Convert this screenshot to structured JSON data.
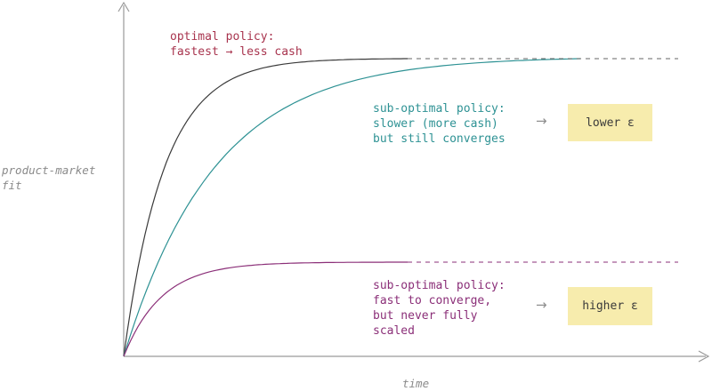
{
  "axes": {
    "y_label_line1": "product-market",
    "y_label_line2": "fit",
    "x_label": "time"
  },
  "annotations": {
    "optimal_line1": "optimal policy:",
    "optimal_line2": "fastest → less cash",
    "slower_line1": "sub-optimal policy:",
    "slower_line2": "slower (more cash)",
    "slower_line3": "but still converges",
    "fast_line1": "sub-optimal policy:",
    "fast_line2": "fast to converge,",
    "fast_line3": "but never fully",
    "fast_line4": "scaled"
  },
  "boxes": {
    "lower": "lower ε",
    "higher": "higher ε"
  },
  "arrow_glyph": "→",
  "colors": {
    "optimal": "#3a3a3a",
    "slower": "#2e9294",
    "fast": "#8b2f78",
    "optimal_text": "#a8344e",
    "axis": "#9a9a9a",
    "box": "#f7ecad"
  }
}
